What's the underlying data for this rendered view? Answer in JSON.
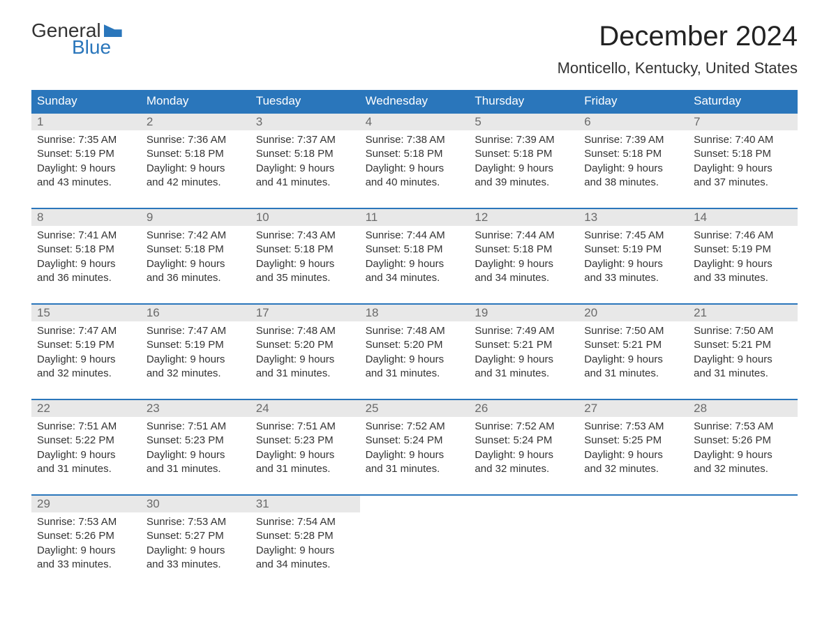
{
  "logo": {
    "top": "General",
    "bottom": "Blue"
  },
  "title": "December 2024",
  "location": "Monticello, Kentucky, United States",
  "weekdays": [
    "Sunday",
    "Monday",
    "Tuesday",
    "Wednesday",
    "Thursday",
    "Friday",
    "Saturday"
  ],
  "colors": {
    "header_bg": "#2a76bb",
    "header_text": "#ffffff",
    "daynum_bg": "#e8e8e8",
    "daynum_text": "#6a6a6a",
    "border": "#2a76bb",
    "body_text": "#333333",
    "page_bg": "#ffffff"
  },
  "weeks": [
    [
      {
        "n": "1",
        "sunrise": "7:35 AM",
        "sunset": "5:19 PM",
        "daylight": "9 hours and 43 minutes."
      },
      {
        "n": "2",
        "sunrise": "7:36 AM",
        "sunset": "5:18 PM",
        "daylight": "9 hours and 42 minutes."
      },
      {
        "n": "3",
        "sunrise": "7:37 AM",
        "sunset": "5:18 PM",
        "daylight": "9 hours and 41 minutes."
      },
      {
        "n": "4",
        "sunrise": "7:38 AM",
        "sunset": "5:18 PM",
        "daylight": "9 hours and 40 minutes."
      },
      {
        "n": "5",
        "sunrise": "7:39 AM",
        "sunset": "5:18 PM",
        "daylight": "9 hours and 39 minutes."
      },
      {
        "n": "6",
        "sunrise": "7:39 AM",
        "sunset": "5:18 PM",
        "daylight": "9 hours and 38 minutes."
      },
      {
        "n": "7",
        "sunrise": "7:40 AM",
        "sunset": "5:18 PM",
        "daylight": "9 hours and 37 minutes."
      }
    ],
    [
      {
        "n": "8",
        "sunrise": "7:41 AM",
        "sunset": "5:18 PM",
        "daylight": "9 hours and 36 minutes."
      },
      {
        "n": "9",
        "sunrise": "7:42 AM",
        "sunset": "5:18 PM",
        "daylight": "9 hours and 36 minutes."
      },
      {
        "n": "10",
        "sunrise": "7:43 AM",
        "sunset": "5:18 PM",
        "daylight": "9 hours and 35 minutes."
      },
      {
        "n": "11",
        "sunrise": "7:44 AM",
        "sunset": "5:18 PM",
        "daylight": "9 hours and 34 minutes."
      },
      {
        "n": "12",
        "sunrise": "7:44 AM",
        "sunset": "5:18 PM",
        "daylight": "9 hours and 34 minutes."
      },
      {
        "n": "13",
        "sunrise": "7:45 AM",
        "sunset": "5:19 PM",
        "daylight": "9 hours and 33 minutes."
      },
      {
        "n": "14",
        "sunrise": "7:46 AM",
        "sunset": "5:19 PM",
        "daylight": "9 hours and 33 minutes."
      }
    ],
    [
      {
        "n": "15",
        "sunrise": "7:47 AM",
        "sunset": "5:19 PM",
        "daylight": "9 hours and 32 minutes."
      },
      {
        "n": "16",
        "sunrise": "7:47 AM",
        "sunset": "5:19 PM",
        "daylight": "9 hours and 32 minutes."
      },
      {
        "n": "17",
        "sunrise": "7:48 AM",
        "sunset": "5:20 PM",
        "daylight": "9 hours and 31 minutes."
      },
      {
        "n": "18",
        "sunrise": "7:48 AM",
        "sunset": "5:20 PM",
        "daylight": "9 hours and 31 minutes."
      },
      {
        "n": "19",
        "sunrise": "7:49 AM",
        "sunset": "5:21 PM",
        "daylight": "9 hours and 31 minutes."
      },
      {
        "n": "20",
        "sunrise": "7:50 AM",
        "sunset": "5:21 PM",
        "daylight": "9 hours and 31 minutes."
      },
      {
        "n": "21",
        "sunrise": "7:50 AM",
        "sunset": "5:21 PM",
        "daylight": "9 hours and 31 minutes."
      }
    ],
    [
      {
        "n": "22",
        "sunrise": "7:51 AM",
        "sunset": "5:22 PM",
        "daylight": "9 hours and 31 minutes."
      },
      {
        "n": "23",
        "sunrise": "7:51 AM",
        "sunset": "5:23 PM",
        "daylight": "9 hours and 31 minutes."
      },
      {
        "n": "24",
        "sunrise": "7:51 AM",
        "sunset": "5:23 PM",
        "daylight": "9 hours and 31 minutes."
      },
      {
        "n": "25",
        "sunrise": "7:52 AM",
        "sunset": "5:24 PM",
        "daylight": "9 hours and 31 minutes."
      },
      {
        "n": "26",
        "sunrise": "7:52 AM",
        "sunset": "5:24 PM",
        "daylight": "9 hours and 32 minutes."
      },
      {
        "n": "27",
        "sunrise": "7:53 AM",
        "sunset": "5:25 PM",
        "daylight": "9 hours and 32 minutes."
      },
      {
        "n": "28",
        "sunrise": "7:53 AM",
        "sunset": "5:26 PM",
        "daylight": "9 hours and 32 minutes."
      }
    ],
    [
      {
        "n": "29",
        "sunrise": "7:53 AM",
        "sunset": "5:26 PM",
        "daylight": "9 hours and 33 minutes."
      },
      {
        "n": "30",
        "sunrise": "7:53 AM",
        "sunset": "5:27 PM",
        "daylight": "9 hours and 33 minutes."
      },
      {
        "n": "31",
        "sunrise": "7:54 AM",
        "sunset": "5:28 PM",
        "daylight": "9 hours and 34 minutes."
      },
      null,
      null,
      null,
      null
    ]
  ],
  "labels": {
    "sunrise_prefix": "Sunrise: ",
    "sunset_prefix": "Sunset: ",
    "daylight_prefix": "Daylight: "
  }
}
